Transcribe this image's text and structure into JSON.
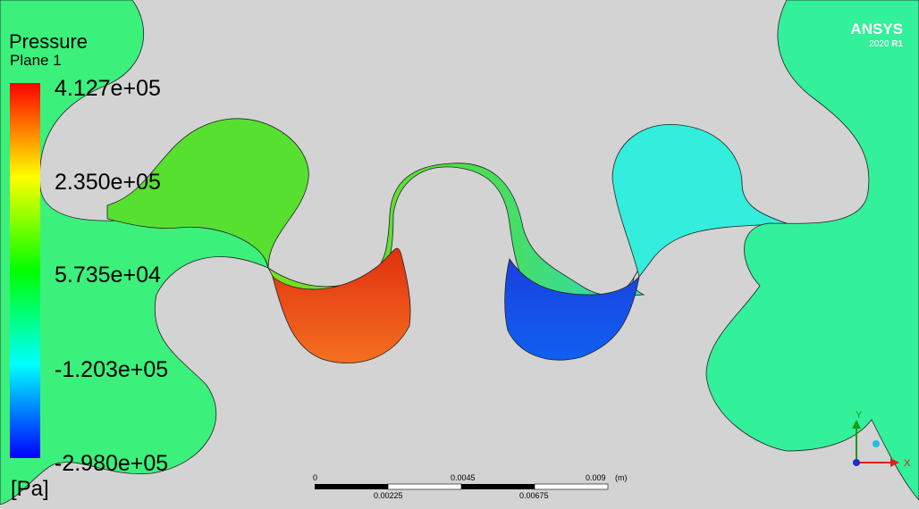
{
  "legend": {
    "title": "Pressure",
    "subtitle": "Plane 1",
    "levels": [
      "4.127e+05",
      "2.350e+05",
      "5.735e+04",
      "-1.203e+05",
      "-2.980e+05"
    ],
    "unit": "[Pa]"
  },
  "logo": {
    "brand": "ANSYS",
    "version": "2020",
    "release": "R1"
  },
  "scale_bar": {
    "top_labels": [
      "0",
      "0.0045",
      "0.009"
    ],
    "unit": "(m)",
    "bottom_labels": [
      "0.00225",
      "0.00675"
    ]
  },
  "axes": {
    "y": "Y",
    "x": "X"
  }
}
